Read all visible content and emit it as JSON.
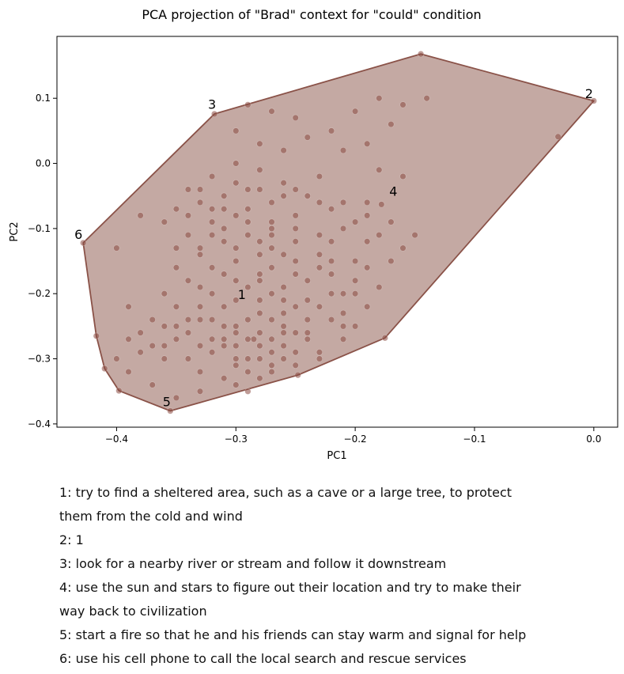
{
  "chart_data": {
    "type": "scatter",
    "title": "PCA projection of \"Brad\" context for \"could\" condition",
    "xlabel": "PC1",
    "ylabel": "PC2",
    "xlim": [
      -0.45,
      0.02
    ],
    "ylim": [
      -0.405,
      0.195
    ],
    "xticks": [
      -0.4,
      -0.3,
      -0.2,
      -0.1,
      0.0
    ],
    "yticks": [
      -0.4,
      -0.3,
      -0.2,
      -0.1,
      0.0,
      0.1
    ],
    "grid": false,
    "colors": {
      "fill": "#c4a9a3",
      "edge": "#8a5248",
      "point": "#8a4a42"
    },
    "hull": [
      [
        -0.145,
        0.168
      ],
      [
        0.0,
        0.096
      ],
      [
        -0.175,
        -0.268
      ],
      [
        -0.248,
        -0.325
      ],
      [
        -0.355,
        -0.38
      ],
      [
        -0.398,
        -0.349
      ],
      [
        -0.41,
        -0.315
      ],
      [
        -0.417,
        -0.265
      ],
      [
        -0.428,
        -0.122
      ],
      [
        -0.318,
        0.076
      ]
    ],
    "labeled_points": [
      {
        "label": "1",
        "x": -0.295,
        "y": -0.208
      },
      {
        "label": "2",
        "x": -0.004,
        "y": 0.1
      },
      {
        "label": "3",
        "x": -0.32,
        "y": 0.084
      },
      {
        "label": "4",
        "x": -0.168,
        "y": -0.05
      },
      {
        "label": "5",
        "x": -0.358,
        "y": -0.373
      },
      {
        "label": "6",
        "x": -0.432,
        "y": -0.116
      }
    ],
    "points": [
      [
        -0.145,
        0.168
      ],
      [
        -0.14,
        0.1
      ],
      [
        -0.0,
        0.096
      ],
      [
        -0.03,
        0.041
      ],
      [
        -0.318,
        0.076
      ],
      [
        -0.428,
        -0.122
      ],
      [
        -0.175,
        -0.268
      ],
      [
        -0.248,
        -0.325
      ],
      [
        -0.355,
        -0.38
      ],
      [
        -0.398,
        -0.349
      ],
      [
        -0.41,
        -0.315
      ],
      [
        -0.417,
        -0.265
      ],
      [
        -0.178,
        -0.063
      ],
      [
        -0.32,
        -0.24
      ],
      [
        -0.31,
        -0.28
      ],
      [
        -0.29,
        -0.3
      ],
      [
        -0.285,
        -0.27
      ],
      [
        -0.3,
        -0.25
      ],
      [
        -0.26,
        -0.23
      ],
      [
        -0.27,
        -0.27
      ],
      [
        -0.25,
        -0.29
      ],
      [
        -0.24,
        -0.26
      ],
      [
        -0.22,
        -0.24
      ],
      [
        -0.28,
        -0.21
      ],
      [
        -0.33,
        -0.22
      ],
      [
        -0.34,
        -0.26
      ],
      [
        -0.35,
        -0.27
      ],
      [
        -0.37,
        -0.28
      ],
      [
        -0.38,
        -0.26
      ],
      [
        -0.36,
        -0.3
      ],
      [
        -0.33,
        -0.32
      ],
      [
        -0.3,
        -0.34
      ],
      [
        -0.28,
        -0.33
      ],
      [
        -0.27,
        -0.31
      ],
      [
        -0.26,
        -0.3
      ],
      [
        -0.23,
        -0.29
      ],
      [
        -0.21,
        -0.27
      ],
      [
        -0.2,
        -0.25
      ],
      [
        -0.21,
        -0.23
      ],
      [
        -0.24,
        -0.21
      ],
      [
        -0.26,
        -0.19
      ],
      [
        -0.28,
        -0.17
      ],
      [
        -0.3,
        -0.15
      ],
      [
        -0.32,
        -0.16
      ],
      [
        -0.34,
        -0.18
      ],
      [
        -0.36,
        -0.2
      ],
      [
        -0.35,
        -0.16
      ],
      [
        -0.33,
        -0.14
      ],
      [
        -0.31,
        -0.12
      ],
      [
        -0.29,
        -0.11
      ],
      [
        -0.27,
        -0.1
      ],
      [
        -0.25,
        -0.12
      ],
      [
        -0.23,
        -0.14
      ],
      [
        -0.22,
        -0.17
      ],
      [
        -0.21,
        -0.2
      ],
      [
        -0.19,
        -0.22
      ],
      [
        -0.18,
        -0.19
      ],
      [
        -0.2,
        -0.15
      ],
      [
        -0.19,
        -0.12
      ],
      [
        -0.2,
        -0.09
      ],
      [
        -0.22,
        -0.07
      ],
      [
        -0.24,
        -0.05
      ],
      [
        -0.26,
        -0.03
      ],
      [
        -0.28,
        -0.01
      ],
      [
        -0.3,
        0.0
      ],
      [
        -0.32,
        -0.02
      ],
      [
        -0.34,
        -0.04
      ],
      [
        -0.33,
        -0.06
      ],
      [
        -0.31,
        -0.05
      ],
      [
        -0.29,
        -0.04
      ],
      [
        -0.27,
        -0.06
      ],
      [
        -0.25,
        -0.08
      ],
      [
        -0.3,
        0.05
      ],
      [
        -0.28,
        0.03
      ],
      [
        -0.26,
        0.02
      ],
      [
        -0.24,
        0.04
      ],
      [
        -0.22,
        0.05
      ],
      [
        -0.25,
        0.07
      ],
      [
        -0.27,
        0.08
      ],
      [
        -0.29,
        0.09
      ],
      [
        -0.2,
        0.08
      ],
      [
        -0.18,
        0.1
      ],
      [
        -0.16,
        0.09
      ],
      [
        -0.17,
        0.06
      ],
      [
        -0.19,
        0.03
      ],
      [
        -0.21,
        0.02
      ],
      [
        -0.23,
        -0.02
      ],
      [
        -0.18,
        -0.01
      ],
      [
        -0.16,
        -0.02
      ],
      [
        -0.15,
        -0.11
      ],
      [
        -0.17,
        -0.09
      ],
      [
        -0.19,
        -0.08
      ],
      [
        -0.21,
        -0.1
      ],
      [
        -0.23,
        -0.11
      ],
      [
        -0.4,
        -0.13
      ],
      [
        -0.38,
        -0.08
      ],
      [
        -0.36,
        -0.09
      ],
      [
        -0.39,
        -0.22
      ],
      [
        -0.4,
        -0.3
      ],
      [
        -0.39,
        -0.32
      ],
      [
        -0.37,
        -0.34
      ],
      [
        -0.35,
        -0.36
      ],
      [
        -0.33,
        -0.35
      ],
      [
        -0.31,
        -0.33
      ],
      [
        -0.29,
        -0.35
      ],
      [
        -0.27,
        -0.32
      ],
      [
        -0.25,
        -0.31
      ],
      [
        -0.23,
        -0.3
      ],
      [
        -0.28,
        -0.28
      ],
      [
        -0.3,
        -0.3
      ],
      [
        -0.32,
        -0.29
      ],
      [
        -0.34,
        -0.3
      ],
      [
        -0.36,
        -0.28
      ],
      [
        -0.38,
        -0.29
      ],
      [
        -0.3,
        -0.26
      ],
      [
        -0.31,
        -0.22
      ],
      [
        -0.32,
        -0.2
      ],
      [
        -0.29,
        -0.19
      ],
      [
        -0.27,
        -0.2
      ],
      [
        -0.25,
        -0.22
      ],
      [
        -0.26,
        -0.25
      ],
      [
        -0.24,
        -0.24
      ],
      [
        -0.27,
        -0.16
      ],
      [
        -0.25,
        -0.15
      ],
      [
        -0.3,
        -0.13
      ],
      [
        -0.28,
        -0.14
      ],
      [
        -0.34,
        -0.11
      ],
      [
        -0.32,
        -0.09
      ],
      [
        -0.33,
        -0.04
      ],
      [
        -0.31,
        -0.07
      ],
      [
        -0.35,
        -0.07
      ],
      [
        -0.29,
        -0.07
      ],
      [
        -0.27,
        -0.13
      ],
      [
        -0.24,
        -0.18
      ],
      [
        -0.22,
        -0.2
      ],
      [
        -0.24,
        -0.27
      ],
      [
        -0.26,
        -0.28
      ],
      [
        -0.28,
        -0.26
      ],
      [
        -0.27,
        -0.29
      ],
      [
        -0.29,
        -0.32
      ],
      [
        -0.3,
        -0.31
      ],
      [
        -0.33,
        -0.28
      ],
      [
        -0.31,
        -0.27
      ],
      [
        -0.35,
        -0.25
      ],
      [
        -0.37,
        -0.24
      ],
      [
        -0.39,
        -0.27
      ],
      [
        -0.31,
        -0.1
      ],
      [
        -0.29,
        -0.09
      ],
      [
        -0.27,
        -0.09
      ],
      [
        -0.25,
        -0.17
      ],
      [
        -0.23,
        -0.16
      ],
      [
        -0.26,
        -0.14
      ],
      [
        -0.28,
        -0.12
      ],
      [
        -0.33,
        -0.13
      ],
      [
        -0.31,
        -0.17
      ],
      [
        -0.32,
        -0.11
      ],
      [
        -0.35,
        -0.13
      ],
      [
        -0.26,
        -0.05
      ],
      [
        -0.22,
        -0.12
      ],
      [
        -0.28,
        -0.23
      ],
      [
        -0.3,
        -0.21
      ],
      [
        -0.33,
        -0.24
      ],
      [
        -0.35,
        -0.22
      ],
      [
        -0.36,
        -0.25
      ],
      [
        -0.28,
        -0.3
      ],
      [
        -0.26,
        -0.26
      ],
      [
        -0.3,
        -0.28
      ],
      [
        -0.29,
        -0.24
      ],
      [
        -0.31,
        -0.25
      ],
      [
        -0.27,
        -0.24
      ],
      [
        -0.25,
        -0.26
      ],
      [
        -0.29,
        -0.27
      ],
      [
        -0.32,
        -0.27
      ],
      [
        -0.34,
        -0.24
      ],
      [
        -0.33,
        -0.19
      ],
      [
        -0.3,
        -0.18
      ],
      [
        -0.28,
        -0.18
      ],
      [
        -0.26,
        -0.21
      ],
      [
        -0.23,
        -0.22
      ],
      [
        -0.21,
        -0.25
      ],
      [
        -0.2,
        -0.2
      ],
      [
        -0.22,
        -0.15
      ],
      [
        -0.25,
        -0.1
      ],
      [
        -0.27,
        -0.11
      ],
      [
        -0.3,
        -0.08
      ],
      [
        -0.32,
        -0.07
      ],
      [
        -0.34,
        -0.08
      ],
      [
        -0.3,
        -0.03
      ],
      [
        -0.28,
        -0.04
      ],
      [
        -0.25,
        -0.04
      ],
      [
        -0.23,
        -0.06
      ],
      [
        -0.21,
        -0.06
      ],
      [
        -0.19,
        -0.06
      ],
      [
        -0.18,
        -0.11
      ],
      [
        -0.17,
        -0.15
      ],
      [
        -0.2,
        -0.18
      ],
      [
        -0.16,
        -0.13
      ],
      [
        -0.19,
        -0.16
      ]
    ],
    "annotations": [
      "1: try to find a sheltered area, such as a cave or a large tree, to protect them from the cold and wind",
      "2: 1",
      "3: look for a nearby river or stream and follow it downstream",
      "4: use the sun and stars to figure out their location and try to make their way back to civilization",
      "5: start a fire so that he and his friends can stay warm and signal for help",
      "6: use his cell phone to call the local search and rescue services"
    ]
  },
  "legend_lines": [
    "1: try to find a sheltered area, such as a cave or a large tree, to protect",
    "them from the cold and wind",
    "2: 1",
    "3: look for a nearby river or stream and follow it downstream",
    "4: use the sun and stars to figure out their location and try to make their",
    "way back to civilization",
    "5: start a fire so that he and his friends can stay warm and signal for help",
    "6: use his cell phone to call the local search and rescue services"
  ]
}
